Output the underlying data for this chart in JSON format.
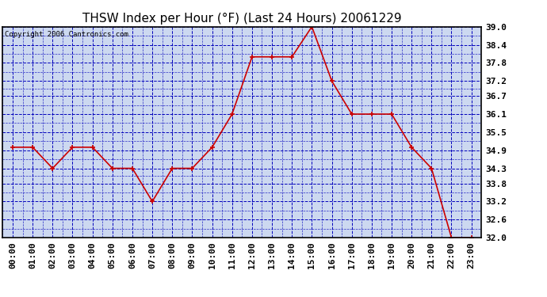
{
  "title": "THSW Index per Hour (°F) (Last 24 Hours) 20061229",
  "copyright": "Copyright 2006 Cantronics.com",
  "hours": [
    "00:00",
    "01:00",
    "02:00",
    "03:00",
    "04:00",
    "05:00",
    "06:00",
    "07:00",
    "08:00",
    "09:00",
    "10:00",
    "11:00",
    "12:00",
    "13:00",
    "14:00",
    "15:00",
    "16:00",
    "17:00",
    "18:00",
    "19:00",
    "20:00",
    "21:00",
    "22:00",
    "23:00"
  ],
  "values": [
    35.0,
    35.0,
    34.3,
    35.0,
    35.0,
    34.3,
    34.3,
    33.2,
    34.3,
    34.3,
    35.0,
    36.1,
    38.0,
    38.0,
    38.0,
    39.0,
    37.2,
    36.1,
    36.1,
    36.1,
    35.0,
    34.3,
    32.0,
    32.0
  ],
  "ylim_min": 32.0,
  "ylim_max": 39.0,
  "yticks": [
    32.0,
    32.6,
    33.2,
    33.8,
    34.3,
    34.9,
    35.5,
    36.1,
    36.7,
    37.2,
    37.8,
    38.4,
    39.0
  ],
  "line_color": "#cc0000",
  "marker_color": "#cc0000",
  "bg_color": "#ffffff",
  "plot_bg_color": "#ccd8f0",
  "grid_color": "#0000bb",
  "title_color": "#000000",
  "axis_color": "#000000",
  "copyright_color": "#000000",
  "title_fontsize": 11,
  "tick_fontsize": 8,
  "copyright_fontsize": 6.5
}
